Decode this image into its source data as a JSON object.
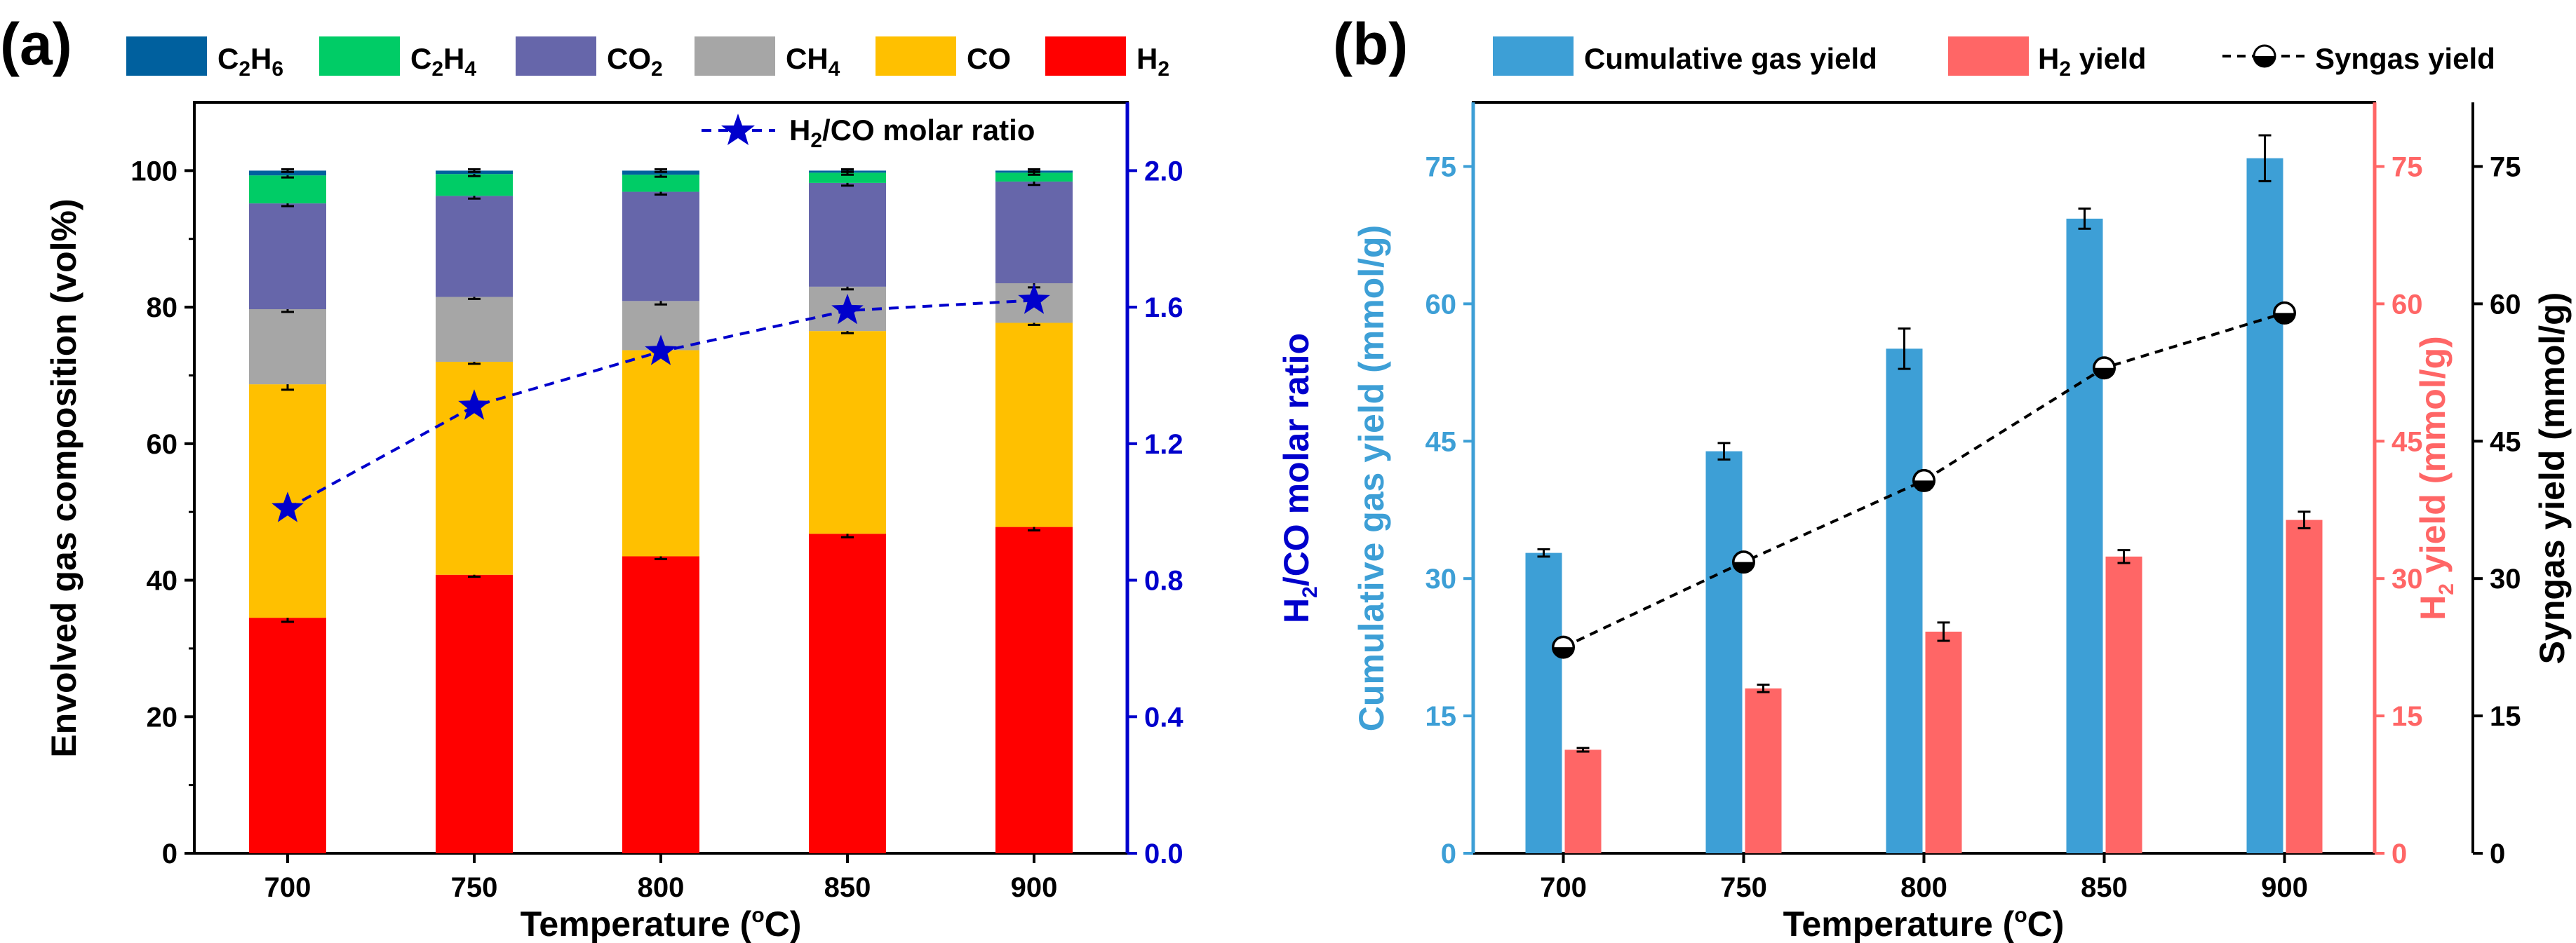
{
  "chart_data": [
    {
      "panel": "(a)",
      "type": "bar",
      "stacked": true,
      "categories": [
        "700",
        "750",
        "800",
        "850",
        "900"
      ],
      "xlabel": "Temperature (oC)",
      "ylabel": "Envolved gas composition (vol%)",
      "ylim": [
        0,
        110
      ],
      "yticks": [
        "0",
        "20",
        "40",
        "60",
        "80",
        "100"
      ],
      "y2label": "H2/CO molar ratio",
      "y2lim": [
        0,
        2.2
      ],
      "y2ticks": [
        "0.0",
        "0.4",
        "0.8",
        "1.2",
        "1.6",
        "2.0"
      ],
      "legend_position": "top",
      "series": [
        {
          "name": "H2",
          "color": "#ff0000",
          "values": [
            34.5,
            40.8,
            43.5,
            46.8,
            47.8
          ],
          "errors": [
            0.6,
            0.3,
            0.4,
            0.5,
            0.5
          ]
        },
        {
          "name": "CO",
          "color": "#ffc000",
          "values": [
            34.2,
            31.2,
            30.2,
            29.7,
            29.9
          ],
          "errors": [
            0.8,
            0.3,
            0.3,
            0.3,
            0.3
          ]
        },
        {
          "name": "CH4",
          "color": "#a6a6a6",
          "values": [
            11.0,
            9.5,
            7.2,
            6.5,
            5.8
          ],
          "errors": [
            0.4,
            0.3,
            0.5,
            0.4,
            0.6
          ]
        },
        {
          "name": "CO2",
          "color": "#6666aa",
          "values": [
            15.5,
            14.8,
            16.0,
            15.2,
            14.9
          ],
          "errors": [
            0.4,
            0.4,
            0.4,
            0.4,
            0.5
          ]
        },
        {
          "name": "C2H4",
          "color": "#00cc66",
          "values": [
            4.1,
            3.2,
            2.5,
            1.5,
            1.3
          ],
          "errors": [
            0.3,
            0.3,
            0.3,
            0.3,
            0.3
          ]
        },
        {
          "name": "C2H6",
          "color": "#00609e",
          "values": [
            0.7,
            0.5,
            0.6,
            0.3,
            0.3
          ],
          "errors": [
            0.2,
            0.2,
            0.2,
            0.2,
            0.2
          ]
        }
      ],
      "line_series": {
        "name": "H2/CO molar ratio",
        "axis": "right",
        "color": "#0000cc",
        "marker": "star",
        "values": [
          1.01,
          1.31,
          1.47,
          1.59,
          1.62
        ]
      }
    },
    {
      "panel": "(b)",
      "type": "bar",
      "categories": [
        "700",
        "750",
        "800",
        "850",
        "900"
      ],
      "xlabel": "Temperature (oC)",
      "ylabel": "Cumulative gas yield (mmol/g)",
      "ylim": [
        0,
        82
      ],
      "yticks": [
        "0",
        "15",
        "30",
        "45",
        "60",
        "75"
      ],
      "y2label": "H2 yield (mmol/g)",
      "y2ticks": [
        "0",
        "15",
        "30",
        "45",
        "60",
        "75"
      ],
      "y3label": "Syngas yield (mmol/g)",
      "y3ticks": [
        "0",
        "15",
        "30",
        "45",
        "60",
        "75"
      ],
      "legend_position": "top",
      "series": [
        {
          "name": "Cumulative gas yield",
          "color": "#3d9fd6",
          "values": [
            32.8,
            43.9,
            55.1,
            69.3,
            75.9
          ],
          "errors": [
            0.4,
            0.9,
            2.2,
            1.1,
            2.5
          ]
        },
        {
          "name": "H2 yield",
          "color": "#ff6666",
          "values": [
            11.3,
            18.0,
            24.2,
            32.4,
            36.4
          ],
          "errors": [
            0.2,
            0.4,
            1.0,
            0.7,
            0.9
          ]
        }
      ],
      "line_series": {
        "name": "Syngas yield",
        "axis": "third",
        "color": "#000000",
        "marker": "half-filled-circle",
        "values": [
          22.5,
          31.8,
          40.7,
          53.0,
          59.0
        ],
        "errors": [
          0.3,
          0.4,
          1.0,
          0.6,
          0.8
        ]
      }
    }
  ],
  "legend_a": {
    "c2h6": {
      "base": "C",
      "s1": "2",
      "mid": "H",
      "s2": "6"
    },
    "c2h4": {
      "base": "C",
      "s1": "2",
      "mid": "H",
      "s2": "4"
    },
    "co2": {
      "base": "CO",
      "s1": "2"
    },
    "ch4": {
      "base": "CH",
      "s1": "4"
    },
    "co": {
      "base": "CO"
    },
    "h2": {
      "base": "H",
      "s1": "2"
    }
  },
  "ratio_label": {
    "p1": "H",
    "s1": "2",
    "p2": "/CO molar ratio"
  },
  "axis_a": {
    "y2_label": {
      "p1": "H",
      "s1": "2",
      "p2": "/CO molar ratio"
    },
    "x_label": {
      "p1": "Temperature (",
      "sup": "o",
      "p2": "C)"
    }
  },
  "axis_b": {
    "y2_label": {
      "p1": "H",
      "s1": "2",
      "p2": " yield (mmol/g)"
    },
    "x_label": {
      "p1": "Temperature (",
      "sup": "o",
      "p2": "C)"
    }
  },
  "legend_b": {
    "cum": "Cumulative gas yield",
    "h2": {
      "p1": "H",
      "s1": "2",
      "p2": " yield"
    },
    "syngas": "Syngas yield"
  }
}
